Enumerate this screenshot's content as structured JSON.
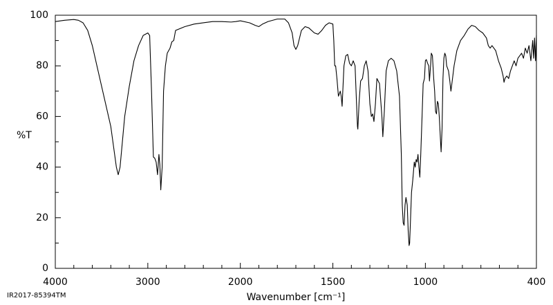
{
  "chart_data": {
    "type": "line",
    "xlabel": "Wavenumber [cm⁻¹]",
    "ylabel": "%T",
    "footnote": "IR2017-85394TM",
    "xlim": [
      4000,
      400
    ],
    "xscale_break": 2000,
    "xticks": [
      4000,
      3000,
      2000,
      1500,
      1000,
      400
    ],
    "xminorticks": [
      3800,
      3600,
      3400,
      3200,
      2800,
      2600,
      2400,
      2200,
      1900,
      1800,
      1700,
      1600,
      1400,
      1300,
      1200,
      1100,
      900,
      800,
      700,
      600,
      500
    ],
    "ylim": [
      0,
      100
    ],
    "yticks": [
      0,
      20,
      40,
      60,
      80,
      100
    ],
    "yminorticks": [
      10,
      30,
      50,
      70,
      90
    ],
    "x": [
      4000,
      3900,
      3800,
      3750,
      3700,
      3650,
      3600,
      3550,
      3500,
      3450,
      3400,
      3370,
      3340,
      3320,
      3300,
      3270,
      3250,
      3200,
      3150,
      3100,
      3050,
      3000,
      2980,
      2960,
      2940,
      2925,
      2910,
      2895,
      2880,
      2870,
      2860,
      2845,
      2830,
      2810,
      2790,
      2760,
      2740,
      2720,
      2700,
      2600,
      2500,
      2400,
      2300,
      2200,
      2100,
      2050,
      2000,
      1950,
      1920,
      1900,
      1880,
      1850,
      1800,
      1760,
      1740,
      1720,
      1710,
      1700,
      1690,
      1670,
      1650,
      1630,
      1600,
      1580,
      1560,
      1540,
      1520,
      1500,
      1495,
      1490,
      1485,
      1478,
      1470,
      1460,
      1455,
      1450,
      1440,
      1430,
      1420,
      1410,
      1400,
      1390,
      1380,
      1372,
      1367,
      1365,
      1358,
      1350,
      1340,
      1330,
      1320,
      1310,
      1300,
      1292,
      1285,
      1278,
      1270,
      1262,
      1255,
      1248,
      1240,
      1235,
      1230,
      1222,
      1212,
      1200,
      1185,
      1170,
      1155,
      1140,
      1130,
      1125,
      1120,
      1115,
      1110,
      1105,
      1098,
      1093,
      1088,
      1085,
      1080,
      1075,
      1068,
      1060,
      1055,
      1050,
      1045,
      1040,
      1035,
      1030,
      1025,
      1018,
      1012,
      1005,
      1000,
      995,
      988,
      982,
      978,
      972,
      968,
      962,
      955,
      950,
      945,
      940,
      935,
      930,
      925,
      918,
      915,
      910,
      905,
      900,
      895,
      890,
      885,
      875,
      868,
      862,
      855,
      845,
      830,
      810,
      790,
      770,
      750,
      730,
      710,
      690,
      670,
      660,
      650,
      640,
      630,
      620,
      605,
      590,
      580,
      575,
      570,
      560,
      550,
      540,
      530,
      520,
      510,
      500,
      490,
      480,
      470,
      460,
      450,
      440,
      430,
      420,
      415,
      410,
      405,
      400
    ],
    "series": [
      {
        "color": "#000000",
        "values": [
          97.5,
          98,
          98.3,
          98,
          97,
          94,
          88,
          80,
          72,
          64,
          56,
          48,
          40,
          37,
          40,
          52,
          60,
          72,
          82,
          88,
          92,
          93,
          92,
          70,
          44,
          43.5,
          42,
          37,
          45,
          41,
          31,
          40,
          70,
          80,
          85,
          87,
          89.5,
          90,
          94,
          95.5,
          96.5,
          97,
          97.5,
          97.5,
          97.3,
          97.5,
          97.8,
          97,
          96,
          95.5,
          96.5,
          97.5,
          98.5,
          98.5,
          97,
          93,
          88,
          86.5,
          88,
          94,
          95.5,
          95,
          93,
          92.5,
          94,
          96,
          97,
          96.5,
          90,
          80,
          80,
          75,
          68,
          70,
          68,
          64,
          80,
          84,
          84.5,
          81,
          80,
          82,
          80,
          65,
          56,
          55,
          66,
          74,
          75,
          80,
          82,
          78,
          65,
          60,
          61,
          58,
          65,
          75,
          74,
          73,
          65,
          60,
          52,
          62,
          78,
          82,
          83,
          82,
          78,
          68,
          45,
          25,
          18,
          17,
          25,
          28,
          25,
          15,
          9,
          10,
          20,
          30,
          35,
          42,
          40,
          43,
          42,
          45,
          40,
          36,
          45,
          60,
          73,
          75,
          82,
          82.5,
          81,
          80,
          74,
          80,
          85,
          84,
          75,
          70,
          62,
          61,
          66,
          65,
          60,
          50,
          46,
          55,
          75,
          83,
          85,
          84,
          80,
          78,
          74,
          70,
          74,
          80,
          86,
          90,
          92,
          94.5,
          96,
          95.5,
          94,
          93,
          91,
          88,
          87,
          88,
          87,
          86,
          82,
          79,
          76,
          73.5,
          75,
          76,
          75,
          78,
          80,
          82,
          80,
          83,
          84,
          85,
          83,
          87,
          85,
          88,
          82,
          90,
          83,
          91,
          82,
          92
        ]
      }
    ]
  }
}
